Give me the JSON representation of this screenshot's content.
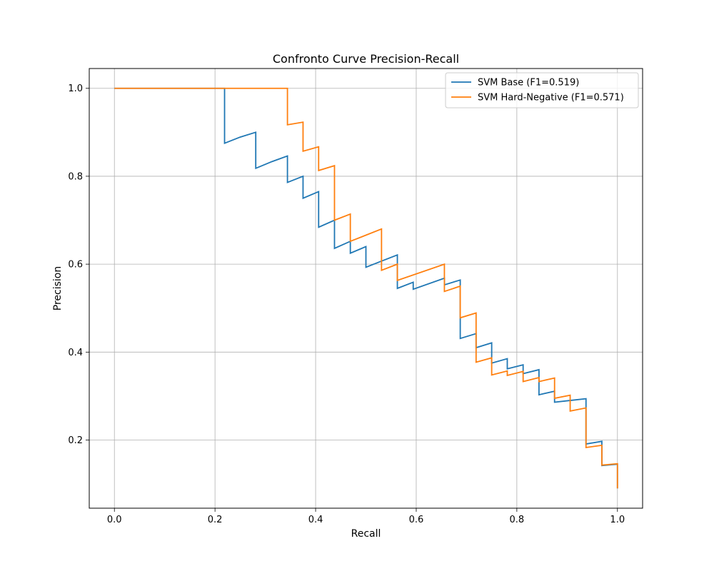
{
  "chart_data": {
    "type": "line",
    "title": "Confronto Curve Precision-Recall",
    "xlabel": "Recall",
    "ylabel": "Precision",
    "xlim": [
      -0.05,
      1.05
    ],
    "ylim": [
      0.045,
      1.045
    ],
    "xticks": [
      0.0,
      0.2,
      0.4,
      0.6,
      0.8,
      1.0
    ],
    "xtick_labels": [
      "0.0",
      "0.2",
      "0.4",
      "0.6",
      "0.8",
      "1.0"
    ],
    "yticks": [
      0.2,
      0.4,
      0.6,
      0.8,
      1.0
    ],
    "ytick_labels": [
      "0.2",
      "0.4",
      "0.6",
      "0.8",
      "1.0"
    ],
    "grid": true,
    "legend_position": "upper right",
    "series": [
      {
        "name": "SVM Base (F1=0.519)",
        "color": "#1f77b4",
        "points": [
          [
            0.0,
            1.0
          ],
          [
            0.219,
            1.0
          ],
          [
            0.219,
            0.875
          ],
          [
            0.25,
            0.889
          ],
          [
            0.281,
            0.9
          ],
          [
            0.281,
            0.818
          ],
          [
            0.3125,
            0.833
          ],
          [
            0.344,
            0.846
          ],
          [
            0.344,
            0.786
          ],
          [
            0.375,
            0.8
          ],
          [
            0.375,
            0.75
          ],
          [
            0.406,
            0.765
          ],
          [
            0.406,
            0.684
          ],
          [
            0.4375,
            0.7
          ],
          [
            0.4375,
            0.636
          ],
          [
            0.469,
            0.652
          ],
          [
            0.469,
            0.625
          ],
          [
            0.5,
            0.64
          ],
          [
            0.5,
            0.593
          ],
          [
            0.531,
            0.607
          ],
          [
            0.5625,
            0.621
          ],
          [
            0.5625,
            0.545
          ],
          [
            0.594,
            0.559
          ],
          [
            0.594,
            0.543
          ],
          [
            0.656,
            0.568
          ],
          [
            0.656,
            0.553
          ],
          [
            0.6875,
            0.564
          ],
          [
            0.6875,
            0.431
          ],
          [
            0.719,
            0.442
          ],
          [
            0.719,
            0.41
          ],
          [
            0.75,
            0.421
          ],
          [
            0.75,
            0.375
          ],
          [
            0.781,
            0.385
          ],
          [
            0.781,
            0.362
          ],
          [
            0.8125,
            0.371
          ],
          [
            0.8125,
            0.351
          ],
          [
            0.844,
            0.36
          ],
          [
            0.844,
            0.303
          ],
          [
            0.875,
            0.311
          ],
          [
            0.875,
            0.286
          ],
          [
            0.906,
            0.29
          ],
          [
            0.9375,
            0.294
          ],
          [
            0.9375,
            0.191
          ],
          [
            0.969,
            0.197
          ],
          [
            0.969,
            0.142
          ],
          [
            1.0,
            0.145
          ],
          [
            1.0,
            0.09
          ]
        ]
      },
      {
        "name": "SVM Hard-Negative (F1=0.571)",
        "color": "#ff7f0e",
        "points": [
          [
            0.0,
            1.0
          ],
          [
            0.344,
            1.0
          ],
          [
            0.344,
            0.917
          ],
          [
            0.375,
            0.923
          ],
          [
            0.375,
            0.857
          ],
          [
            0.406,
            0.867
          ],
          [
            0.406,
            0.813
          ],
          [
            0.4375,
            0.824
          ],
          [
            0.4375,
            0.7
          ],
          [
            0.469,
            0.714
          ],
          [
            0.469,
            0.652
          ],
          [
            0.531,
            0.68
          ],
          [
            0.531,
            0.586
          ],
          [
            0.5625,
            0.6
          ],
          [
            0.5625,
            0.563
          ],
          [
            0.656,
            0.6
          ],
          [
            0.656,
            0.538
          ],
          [
            0.6875,
            0.55
          ],
          [
            0.6875,
            0.478
          ],
          [
            0.719,
            0.489
          ],
          [
            0.719,
            0.377
          ],
          [
            0.75,
            0.387
          ],
          [
            0.75,
            0.348
          ],
          [
            0.781,
            0.357
          ],
          [
            0.781,
            0.347
          ],
          [
            0.8125,
            0.356
          ],
          [
            0.8125,
            0.333
          ],
          [
            0.844,
            0.342
          ],
          [
            0.844,
            0.333
          ],
          [
            0.875,
            0.341
          ],
          [
            0.875,
            0.295
          ],
          [
            0.906,
            0.302
          ],
          [
            0.906,
            0.266
          ],
          [
            0.9375,
            0.273
          ],
          [
            0.9375,
            0.183
          ],
          [
            0.969,
            0.188
          ],
          [
            0.969,
            0.143
          ],
          [
            1.0,
            0.146
          ],
          [
            1.0,
            0.09
          ]
        ]
      }
    ]
  }
}
